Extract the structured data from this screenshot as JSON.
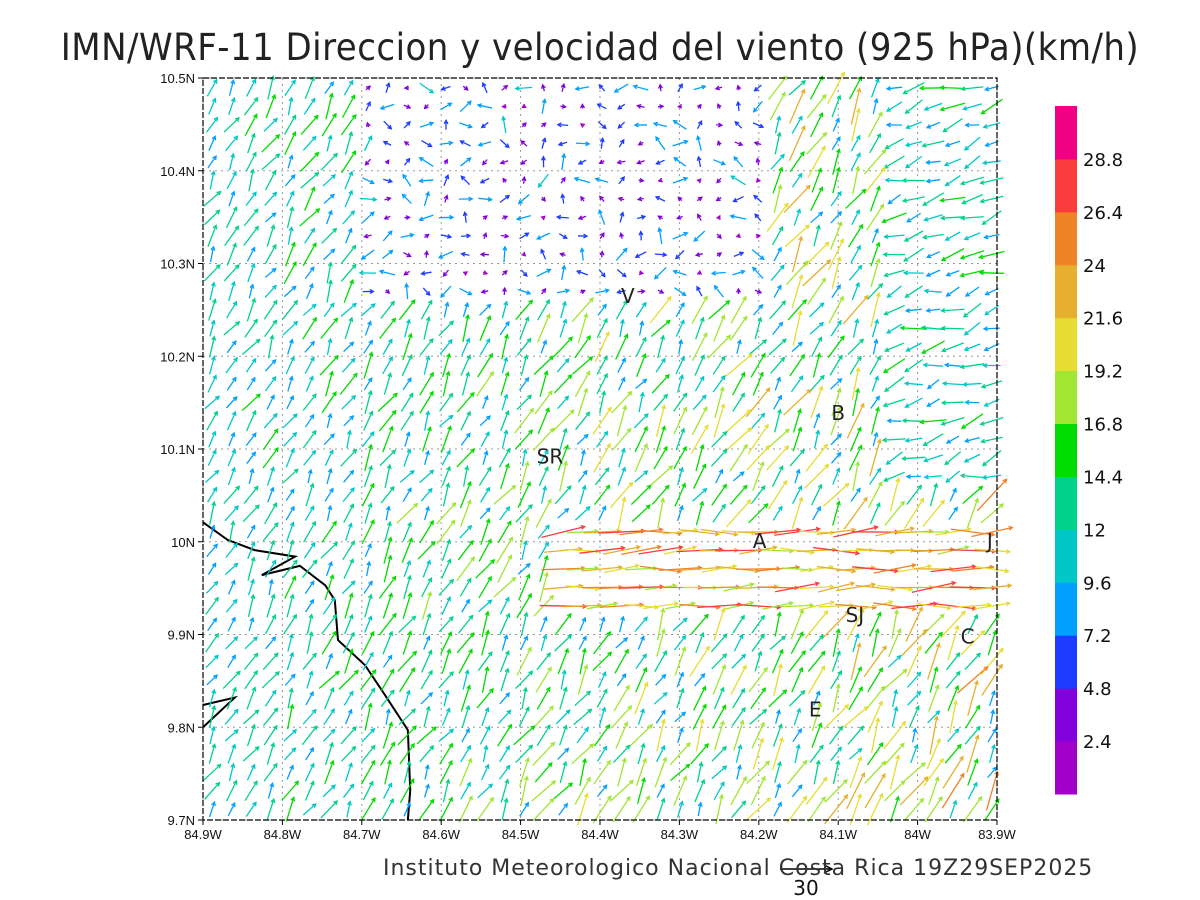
{
  "title": "IMN/WRF-11 Direccion y velocidad del viento (925 hPa)(km/h)",
  "footer": "Instituto Meteorologico Nacional Costa Rica 19Z29SEP2025",
  "reference_vector": {
    "label": "30",
    "speed": 30
  },
  "axes": {
    "lon_range": [
      -84.9,
      -83.9
    ],
    "lat_range": [
      9.7,
      10.5
    ],
    "x_ticks": [
      {
        "value": -84.9,
        "label": "84.9W"
      },
      {
        "value": -84.8,
        "label": "84.8W"
      },
      {
        "value": -84.7,
        "label": "84.7W"
      },
      {
        "value": -84.6,
        "label": "84.6W"
      },
      {
        "value": -84.5,
        "label": "84.5W"
      },
      {
        "value": -84.4,
        "label": "84.4W"
      },
      {
        "value": -84.3,
        "label": "84.3W"
      },
      {
        "value": -84.2,
        "label": "84.2W"
      },
      {
        "value": -84.1,
        "label": "84.1W"
      },
      {
        "value": -84.0,
        "label": "84W"
      },
      {
        "value": -83.9,
        "label": "83.9W"
      }
    ],
    "y_ticks": [
      {
        "value": 10.5,
        "label": "10.5N"
      },
      {
        "value": 10.4,
        "label": "10.4N"
      },
      {
        "value": 10.3,
        "label": "10.3N"
      },
      {
        "value": 10.2,
        "label": "10.2N"
      },
      {
        "value": 10.1,
        "label": "10.1N"
      },
      {
        "value": 10.0,
        "label": "10N"
      },
      {
        "value": 9.9,
        "label": "9.9N"
      },
      {
        "value": 9.8,
        "label": "9.8N"
      },
      {
        "value": 9.7,
        "label": "9.7N"
      }
    ]
  },
  "colorbar": {
    "levels": [
      "2.4",
      "4.8",
      "7.2",
      "9.6",
      "12",
      "14.4",
      "16.8",
      "19.2",
      "21.6",
      "24",
      "26.4",
      "28.8"
    ],
    "colors": [
      "#a000c8",
      "#8200dc",
      "#1e3cff",
      "#00a0ff",
      "#00c8c8",
      "#00d28c",
      "#00dc00",
      "#a0e632",
      "#e6dc32",
      "#e6af2d",
      "#f08228",
      "#fa3c3c",
      "#f00082"
    ]
  },
  "cities": [
    {
      "label": "V",
      "lon": -84.365,
      "lat": 10.265
    },
    {
      "label": "SR",
      "lon": -84.463,
      "lat": 10.092
    },
    {
      "label": "B",
      "lon": -84.1,
      "lat": 10.139
    },
    {
      "label": "A",
      "lon": -84.199,
      "lat": 10.001
    },
    {
      "label": "J",
      "lon": -83.909,
      "lat": 10.001
    },
    {
      "label": "SJ",
      "lon": -84.079,
      "lat": 9.921
    },
    {
      "label": "C",
      "lon": -83.937,
      "lat": 9.898
    },
    {
      "label": "E",
      "lon": -84.129,
      "lat": 9.819
    }
  ],
  "coastline": [
    [
      [
        -84.9,
        10.021
      ],
      [
        -84.869,
        10.002
      ],
      [
        -84.835,
        9.991
      ],
      [
        -84.784,
        9.984
      ],
      [
        -84.826,
        9.964
      ],
      [
        -84.778,
        9.974
      ],
      [
        -84.746,
        9.953
      ],
      [
        -84.734,
        9.937
      ],
      [
        -84.73,
        9.894
      ],
      [
        -84.696,
        9.867
      ],
      [
        -84.671,
        9.835
      ],
      [
        -84.642,
        9.797
      ],
      [
        -84.639,
        9.732
      ],
      [
        -84.642,
        9.7
      ]
    ],
    [
      [
        -84.9,
        9.8
      ],
      [
        -84.86,
        9.832
      ],
      [
        -84.9,
        9.824
      ]
    ]
  ]
}
